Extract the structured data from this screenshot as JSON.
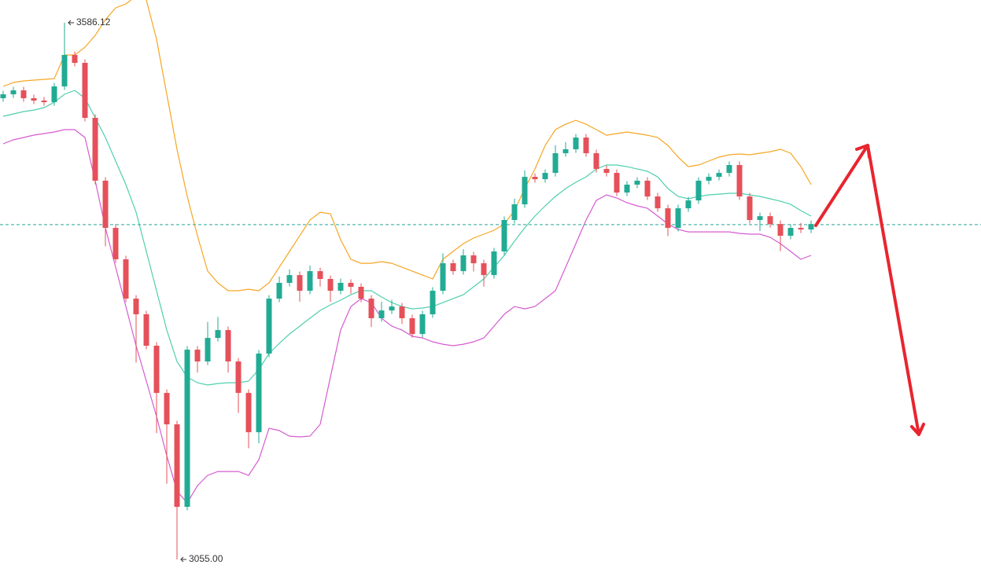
{
  "chart_data": {
    "type": "candlestick",
    "ylim": [
      3031.7,
      3608.6
    ],
    "up_color": "#22ab94",
    "down_color": "#e5505a",
    "open": [
      3511.4,
      3515.3,
      3519.2,
      3511.4,
      3509.1,
      3507.5,
      3523.1,
      3554.2,
      3546.4,
      3492.0,
      3429.8,
      3383.1,
      3352.0,
      3313.1,
      3297.6,
      3266.5,
      3219.8,
      3188.7,
      3107.1,
      3262.6,
      3250.9,
      3274.2,
      3282.0,
      3250.9,
      3219.8,
      3180.9,
      3258.7,
      3313.1,
      3328.7,
      3336.4,
      3320.9,
      3340.3,
      3332.6,
      3320.9,
      3328.7,
      3324.8,
      3313.1,
      3293.7,
      3301.4,
      3305.3,
      3293.7,
      3278.1,
      3297.6,
      3320.9,
      3348.1,
      3340.3,
      3355.9,
      3348.1,
      3336.4,
      3359.8,
      3390.9,
      3406.4,
      3433.6,
      3431.3,
      3437.5,
      3457.0,
      3460.9,
      3472.5,
      3457.0,
      3441.4,
      3437.5,
      3418.1,
      3425.9,
      3429.8,
      3414.2,
      3402.5,
      3383.1,
      3402.5,
      3410.3,
      3429.8,
      3433.6,
      3437.5,
      3445.3,
      3414.2,
      3390.9,
      3394.7,
      3386.9,
      3375.3,
      3383.1,
      3381.5
    ],
    "high": [
      3518.8,
      3522.7,
      3522.7,
      3514.9,
      3512.6,
      3526.6,
      3586.12,
      3557.7,
      3549.9,
      3495.5,
      3433.3,
      3386.6,
      3355.5,
      3316.6,
      3301.1,
      3270.0,
      3223.3,
      3192.2,
      3266.1,
      3266.1,
      3290.0,
      3295.0,
      3285.5,
      3254.4,
      3223.3,
      3262.2,
      3316.6,
      3335.0,
      3342.0,
      3339.9,
      3346.0,
      3343.8,
      3336.1,
      3333.0,
      3332.2,
      3328.3,
      3316.6,
      3310.0,
      3312.0,
      3308.8,
      3297.2,
      3301.1,
      3324.4,
      3358.0,
      3351.6,
      3362.0,
      3359.4,
      3351.6,
      3363.3,
      3394.4,
      3412.0,
      3440.0,
      3437.1,
      3441.0,
      3465.0,
      3468.0,
      3476.0,
      3476.0,
      3460.5,
      3444.9,
      3441.0,
      3429.4,
      3433.3,
      3433.3,
      3417.7,
      3406.0,
      3406.0,
      3413.8,
      3433.3,
      3437.1,
      3441.0,
      3448.8,
      3448.8,
      3417.7,
      3398.2,
      3398.2,
      3390.4,
      3386.6,
      3388.0,
      3390.4
    ],
    "low": [
      3507.9,
      3511.8,
      3507.9,
      3505.6,
      3504.0,
      3504.0,
      3519.6,
      3542.9,
      3488.5,
      3426.3,
      3365.0,
      3348.5,
      3309.6,
      3250.0,
      3263.0,
      3180.0,
      3130.0,
      3055.0,
      3103.6,
      3240.0,
      3247.4,
      3270.7,
      3240.0,
      3200.0,
      3165.0,
      3170.0,
      3255.2,
      3309.6,
      3325.2,
      3310.0,
      3317.4,
      3325.0,
      3310.0,
      3317.4,
      3318.0,
      3309.6,
      3285.0,
      3290.2,
      3297.9,
      3288.0,
      3274.6,
      3274.6,
      3294.1,
      3317.4,
      3336.8,
      3336.8,
      3340.0,
      3325.0,
      3332.9,
      3356.3,
      3387.4,
      3402.9,
      3427.8,
      3427.8,
      3434.0,
      3453.5,
      3457.4,
      3453.5,
      3437.9,
      3434.0,
      3414.6,
      3414.6,
      3422.4,
      3410.7,
      3399.0,
      3375.0,
      3379.6,
      3399.0,
      3406.8,
      3426.3,
      3430.1,
      3434.0,
      3410.7,
      3387.4,
      3380.0,
      3383.4,
      3360.0,
      3371.8,
      3378.0,
      3378.0
    ],
    "close": [
      3515.3,
      3519.2,
      3511.4,
      3509.1,
      3507.5,
      3523.1,
      3554.2,
      3546.4,
      3492.0,
      3429.8,
      3383.1,
      3352.0,
      3313.1,
      3297.6,
      3266.5,
      3219.8,
      3188.7,
      3107.1,
      3262.6,
      3250.9,
      3274.2,
      3282.0,
      3250.9,
      3219.8,
      3180.9,
      3258.7,
      3313.1,
      3328.7,
      3336.4,
      3320.9,
      3340.3,
      3332.6,
      3320.9,
      3328.7,
      3324.8,
      3313.1,
      3293.7,
      3301.4,
      3305.3,
      3293.7,
      3278.1,
      3297.6,
      3320.9,
      3348.1,
      3340.3,
      3355.9,
      3348.1,
      3336.4,
      3359.8,
      3390.9,
      3406.4,
      3433.6,
      3431.3,
      3437.5,
      3457.0,
      3460.9,
      3472.5,
      3457.0,
      3441.4,
      3437.5,
      3418.1,
      3425.9,
      3429.8,
      3414.2,
      3402.5,
      3383.1,
      3402.5,
      3410.3,
      3429.8,
      3433.6,
      3437.5,
      3445.3,
      3414.2,
      3390.9,
      3394.7,
      3386.9,
      3375.3,
      3383.1,
      3381.5,
      3386.9
    ],
    "bands": [
      {
        "color": "#f5a623",
        "values": [
          3523.1,
          3527.0,
          3528.5,
          3529.3,
          3530.1,
          3530.8,
          3554.2,
          3554.2,
          3561.9,
          3573.6,
          3589.2,
          3600.8,
          3604.7,
          3612.5,
          3608.6,
          3569.7,
          3515.3,
          3460.9,
          3414.2,
          3375.3,
          3340.3,
          3328.7,
          3320.9,
          3320.9,
          3322.4,
          3320.9,
          3328.7,
          3344.2,
          3359.8,
          3375.3,
          3390.9,
          3398.6,
          3397.1,
          3371.4,
          3352.0,
          3348.1,
          3348.1,
          3349.7,
          3348.1,
          3344.2,
          3340.3,
          3336.4,
          3332.6,
          3352.0,
          3359.8,
          3367.5,
          3373.0,
          3376.9,
          3380.8,
          3387.0,
          3400.2,
          3422.0,
          3441.4,
          3464.7,
          3480.3,
          3485.7,
          3489.6,
          3485.7,
          3480.3,
          3474.8,
          3476.4,
          3478.0,
          3476.4,
          3474.8,
          3472.5,
          3464.7,
          3453.1,
          3443.7,
          3445.3,
          3449.2,
          3453.1,
          3455.4,
          3456.2,
          3455.4,
          3457.0,
          3458.5,
          3460.9,
          3457.0,
          3443.7,
          3425.9
        ]
      },
      {
        "color": "#4fcfae",
        "values": [
          3493.5,
          3495.9,
          3498.2,
          3499.7,
          3502.1,
          3507.5,
          3515.3,
          3519.2,
          3511.4,
          3492.0,
          3472.5,
          3449.2,
          3425.9,
          3398.6,
          3359.8,
          3320.9,
          3282.0,
          3250.9,
          3235.4,
          3229.9,
          3227.6,
          3229.1,
          3229.9,
          3229.9,
          3231.5,
          3243.1,
          3258.7,
          3268.8,
          3278.1,
          3285.9,
          3293.7,
          3301.4,
          3306.9,
          3311.6,
          3317.0,
          3320.9,
          3320.9,
          3314.7,
          3309.2,
          3305.3,
          3303.0,
          3303.8,
          3305.3,
          3309.2,
          3313.1,
          3317.0,
          3324.8,
          3332.6,
          3344.2,
          3355.9,
          3369.9,
          3383.1,
          3394.8,
          3404.9,
          3414.2,
          3422.0,
          3428.2,
          3433.6,
          3441.4,
          3445.3,
          3445.3,
          3443.7,
          3441.4,
          3439.1,
          3433.6,
          3422.0,
          3414.2,
          3411.9,
          3414.2,
          3415.8,
          3416.5,
          3417.3,
          3417.3,
          3415.8,
          3414.2,
          3411.9,
          3409.5,
          3406.4,
          3400.2,
          3394.8
        ]
      },
      {
        "color": "#d65bd1",
        "values": [
          3466.3,
          3470.2,
          3472.5,
          3474.9,
          3476.4,
          3478.0,
          3480.3,
          3480.3,
          3472.5,
          3429.8,
          3383.1,
          3344.2,
          3305.3,
          3266.5,
          3231.5,
          3196.5,
          3157.6,
          3122.6,
          3110.9,
          3128.0,
          3138.2,
          3142.0,
          3142.0,
          3142.0,
          3138.2,
          3153.7,
          3184.8,
          3182.5,
          3177.0,
          3176.3,
          3177.0,
          3188.7,
          3235.4,
          3282.0,
          3305.3,
          3313.1,
          3309.2,
          3293.7,
          3285.9,
          3282.0,
          3275.8,
          3274.2,
          3270.4,
          3268.0,
          3266.5,
          3268.0,
          3270.4,
          3274.2,
          3285.9,
          3297.6,
          3305.3,
          3303.0,
          3305.3,
          3313.1,
          3320.9,
          3344.2,
          3367.5,
          3390.9,
          3410.3,
          3415.8,
          3412.7,
          3408.0,
          3404.9,
          3402.5,
          3394.8,
          3387.0,
          3381.5,
          3379.2,
          3379.2,
          3379.2,
          3379.2,
          3379.2,
          3377.7,
          3376.9,
          3376.9,
          3373.8,
          3367.5,
          3359.8,
          3352.0,
          3355.9
        ]
      }
    ],
    "reference_line": {
      "value": 3386.3,
      "color": "#26a69a"
    },
    "annotations": [
      {
        "value": 3586.12,
        "label": "3586.12"
      },
      {
        "value": 3055,
        "label": "3055.00"
      }
    ]
  }
}
